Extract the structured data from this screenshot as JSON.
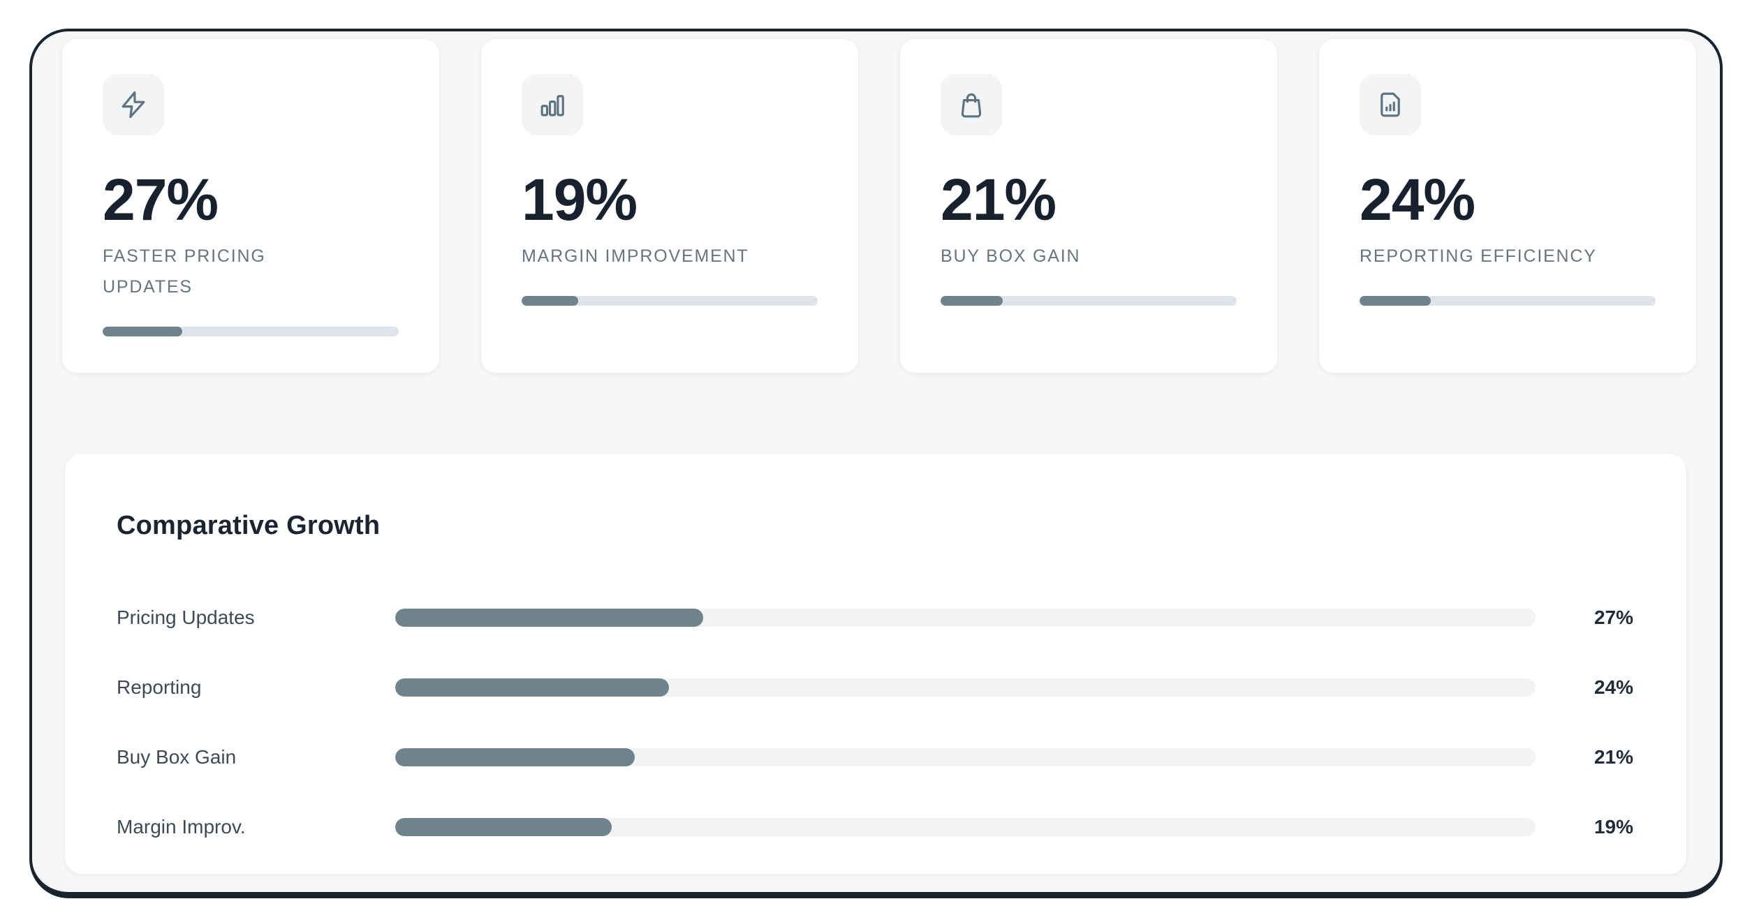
{
  "colors": {
    "accent_fill": "#6f838c",
    "card_track": "#dee4ea",
    "panel_track": "#f1f3f5",
    "value_text": "#17222e",
    "frame_border": "#18242e"
  },
  "stat_cards": [
    {
      "icon": "lightning-icon",
      "value": "27%",
      "label": "FASTER PRICING\nUPDATES",
      "progress_percent": 27
    },
    {
      "icon": "bar-chart-icon",
      "value": "19%",
      "label": "MARGIN IMPROVEMENT",
      "progress_percent": 19
    },
    {
      "icon": "shopping-bag-icon",
      "value": "21%",
      "label": "BUY BOX GAIN",
      "progress_percent": 21
    },
    {
      "icon": "document-chart-icon",
      "value": "24%",
      "label": "REPORTING EFFICIENCY",
      "progress_percent": 24
    }
  ],
  "comparative_growth": {
    "title": "Comparative Growth",
    "rows": [
      {
        "label": "Pricing Updates",
        "value_label": "27%",
        "percent": 27
      },
      {
        "label": "Reporting",
        "value_label": "24%",
        "percent": 24
      },
      {
        "label": "Buy Box Gain",
        "value_label": "21%",
        "percent": 21
      },
      {
        "label": "Margin Improv.",
        "value_label": "19%",
        "percent": 19
      }
    ]
  },
  "chart_data": [
    {
      "type": "bar",
      "orientation": "horizontal",
      "title": "Comparative Growth",
      "categories": [
        "Pricing Updates",
        "Reporting",
        "Buy Box Gain",
        "Margin Improv."
      ],
      "values": [
        27,
        24,
        21,
        19
      ],
      "unit": "%",
      "xlim": [
        0,
        100
      ],
      "grid": false,
      "legend": false,
      "data_labels_position": "right"
    },
    {
      "type": "bar",
      "note": "KPI progress bars inside stat cards, percent of 0-100 scale",
      "categories": [
        "Faster Pricing Updates",
        "Margin Improvement",
        "Buy Box Gain",
        "Reporting Efficiency"
      ],
      "values": [
        27,
        19,
        21,
        24
      ],
      "unit": "%",
      "xlim": [
        0,
        100
      ]
    }
  ]
}
